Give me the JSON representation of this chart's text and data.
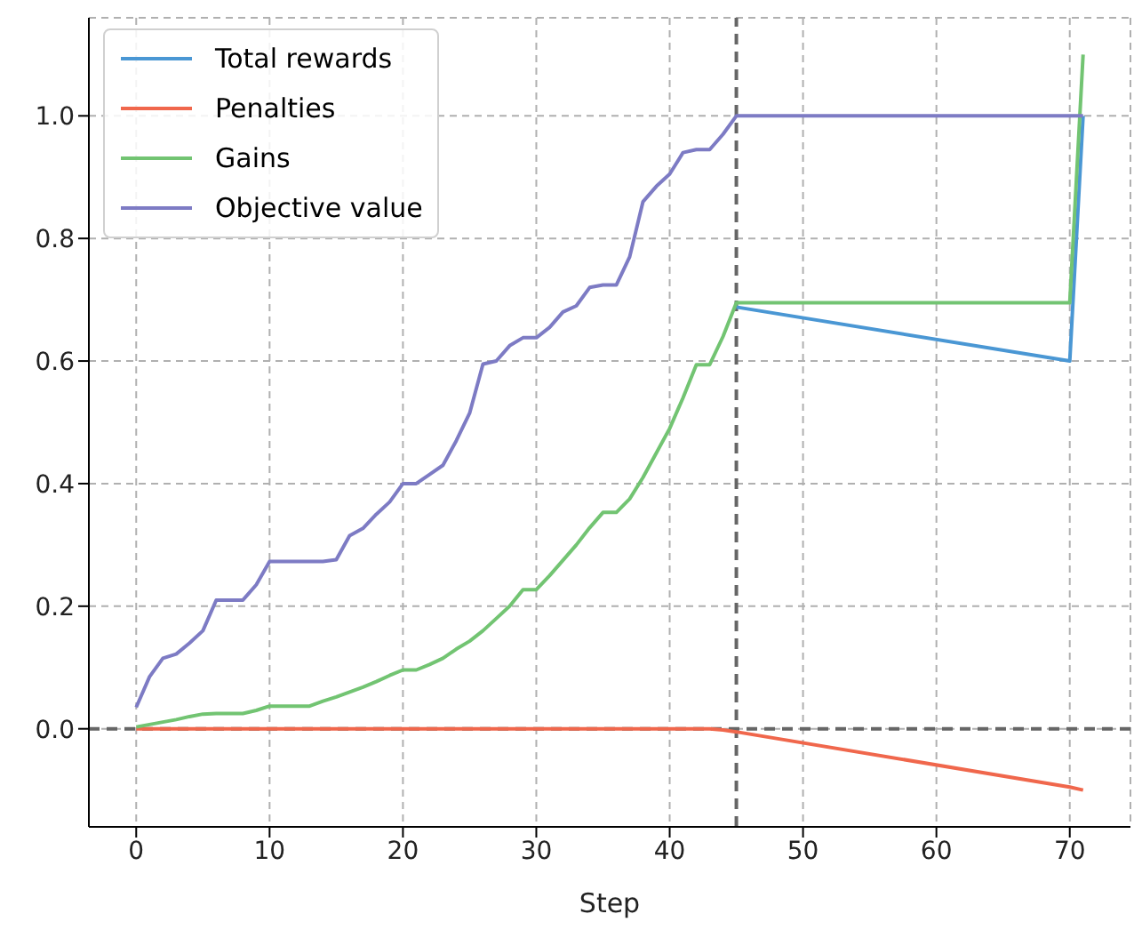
{
  "chart_data": {
    "type": "line",
    "xlabel": "Step",
    "x": [
      0,
      1,
      2,
      3,
      4,
      5,
      6,
      7,
      8,
      9,
      10,
      11,
      12,
      13,
      14,
      15,
      16,
      17,
      18,
      19,
      20,
      21,
      22,
      23,
      24,
      25,
      26,
      27,
      28,
      29,
      30,
      31,
      32,
      33,
      34,
      35,
      36,
      37,
      38,
      39,
      40,
      41,
      42,
      43,
      44,
      45,
      70,
      71
    ],
    "series": [
      {
        "name": "Total rewards",
        "color": "#4a97d4",
        "values": [
          null,
          null,
          null,
          null,
          null,
          null,
          null,
          null,
          null,
          null,
          null,
          null,
          null,
          null,
          null,
          null,
          null,
          null,
          null,
          null,
          null,
          null,
          null,
          null,
          null,
          null,
          null,
          null,
          null,
          null,
          null,
          null,
          null,
          null,
          null,
          null,
          null,
          null,
          null,
          null,
          null,
          null,
          null,
          null,
          null,
          0.688,
          0.6,
          1.0
        ]
      },
      {
        "name": "Penalties",
        "color": "#f0674c",
        "values": [
          0,
          0,
          0,
          0,
          0,
          0,
          0,
          0,
          0,
          0,
          0,
          0,
          0,
          0,
          0,
          0,
          0,
          0,
          0,
          0,
          0,
          0,
          0,
          0,
          0,
          0,
          0,
          0,
          0,
          0,
          0,
          0,
          0,
          0,
          0,
          0,
          0,
          0,
          0,
          0,
          0,
          0,
          0,
          0,
          -0.002,
          -0.005,
          -0.095,
          -0.1
        ]
      },
      {
        "name": "Gains",
        "color": "#72c472",
        "values": [
          0.003,
          0.007,
          0.011,
          0.015,
          0.02,
          0.024,
          0.025,
          0.025,
          0.025,
          0.03,
          0.037,
          0.037,
          0.037,
          0.037,
          0.045,
          0.052,
          0.06,
          0.068,
          0.077,
          0.087,
          0.096,
          0.096,
          0.105,
          0.115,
          0.13,
          0.143,
          0.16,
          0.18,
          0.2,
          0.227,
          0.227,
          0.25,
          0.275,
          0.3,
          0.328,
          0.353,
          0.353,
          0.375,
          0.41,
          0.45,
          0.49,
          0.54,
          0.594,
          0.594,
          0.64,
          0.695,
          0.695,
          1.1
        ]
      },
      {
        "name": "Objective value",
        "color": "#7d7bc4",
        "values": [
          0.035,
          0.085,
          0.115,
          0.122,
          0.14,
          0.16,
          0.21,
          0.21,
          0.21,
          0.235,
          0.273,
          0.273,
          0.273,
          0.273,
          0.273,
          0.276,
          0.315,
          0.327,
          0.35,
          0.37,
          0.4,
          0.4,
          0.415,
          0.43,
          0.47,
          0.515,
          0.595,
          0.6,
          0.625,
          0.638,
          0.638,
          0.655,
          0.68,
          0.69,
          0.72,
          0.724,
          0.724,
          0.77,
          0.86,
          0.885,
          0.905,
          0.94,
          0.945,
          0.945,
          0.97,
          1.0,
          1.0,
          1.0
        ]
      }
    ],
    "xlim": [
      -3.55,
      74.55
    ],
    "xticks": [
      0,
      10,
      20,
      30,
      40,
      50,
      60,
      70
    ],
    "ylim": [
      -0.16,
      1.16
    ],
    "yticks": [
      {
        "value": 0,
        "label": "0.0"
      },
      {
        "value": 0.2,
        "label": "0.2"
      },
      {
        "value": 0.4,
        "label": "0.4"
      },
      {
        "value": 0.6,
        "label": "0.6"
      },
      {
        "value": 0.8,
        "label": "0.8"
      },
      {
        "value": 1,
        "label": "1.0"
      }
    ],
    "ref_lines": [
      {
        "axis": "x",
        "value": 45,
        "color": "#666666",
        "line_style": "dashed"
      },
      {
        "axis": "y",
        "value": 0,
        "color": "#666666",
        "line_style": "dashed"
      }
    ],
    "grid": true,
    "legend": "top left",
    "line_style": "solid",
    "marker": "none"
  }
}
